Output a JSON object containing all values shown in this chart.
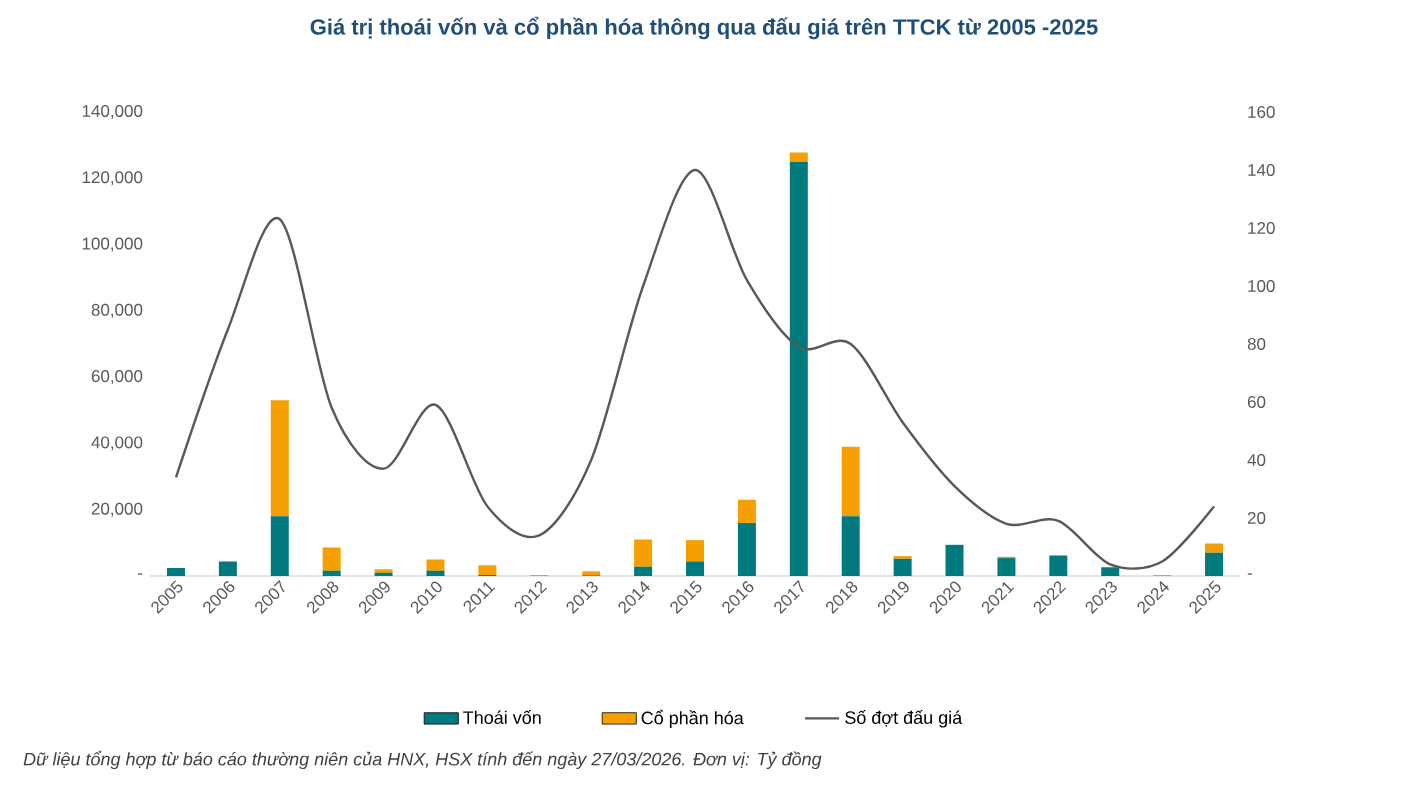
{
  "chart_data": {
    "type": "bar",
    "title": "Giá trị thoái vốn và cổ phần hóa thông qua đấu giá trên TTCK từ 2005 -2025",
    "categories": [
      "2005",
      "2006",
      "2007",
      "2008",
      "2009",
      "2010",
      "2011",
      "2012",
      "2013",
      "2014",
      "2015",
      "2016",
      "2017",
      "2018",
      "2019",
      "2020",
      "2021",
      "2022",
      "2023",
      "2024",
      "2025"
    ],
    "stacked": true,
    "series": [
      {
        "name": "Thoái vốn",
        "color": "#00797f",
        "values": [
          2400,
          4400,
          18000,
          1600,
          1000,
          1600,
          300,
          0,
          200,
          2800,
          4400,
          16000,
          125000,
          18000,
          5200,
          9400,
          5400,
          6200,
          2600,
          0,
          7000
        ]
      },
      {
        "name": "Cổ phần hóa",
        "color": "#f5a000",
        "values": [
          0,
          0,
          35000,
          7000,
          1000,
          3400,
          2900,
          300,
          1200,
          8200,
          6400,
          7000,
          2800,
          21000,
          800,
          0,
          400,
          0,
          0,
          300,
          2800
        ]
      },
      {
        "name": "Số đợt đấu giá",
        "type": "line",
        "axis": "y2",
        "color": "#595959",
        "values": [
          34,
          85,
          123,
          58,
          37,
          59,
          24,
          14,
          40,
          100,
          140,
          102,
          79,
          80,
          53,
          31,
          18,
          19,
          4,
          5,
          24
        ]
      }
    ],
    "ylim": [
      0,
      140000
    ],
    "yticks": [
      {
        "value": 0,
        "label": "-"
      },
      {
        "value": 20000,
        "label": "20,000"
      },
      {
        "value": 40000,
        "label": "40,000"
      },
      {
        "value": 60000,
        "label": "60,000"
      },
      {
        "value": 80000,
        "label": "80,000"
      },
      {
        "value": 100000,
        "label": "100,000"
      },
      {
        "value": 120000,
        "label": "120,000"
      },
      {
        "value": 140000,
        "label": "140,000"
      }
    ],
    "y2lim": [
      0,
      160
    ],
    "y2ticks": [
      {
        "value": 0,
        "label": "-"
      },
      20,
      40,
      60,
      80,
      100,
      120,
      140,
      160
    ],
    "legend": "bottom",
    "grid": false,
    "annotations": [
      "Dữ liệu tổng hợp từ báo cáo thường niên của HNX, HSX tính đến ngày 27/03/2026. Đơn vị: Tỷ đồng"
    ]
  }
}
